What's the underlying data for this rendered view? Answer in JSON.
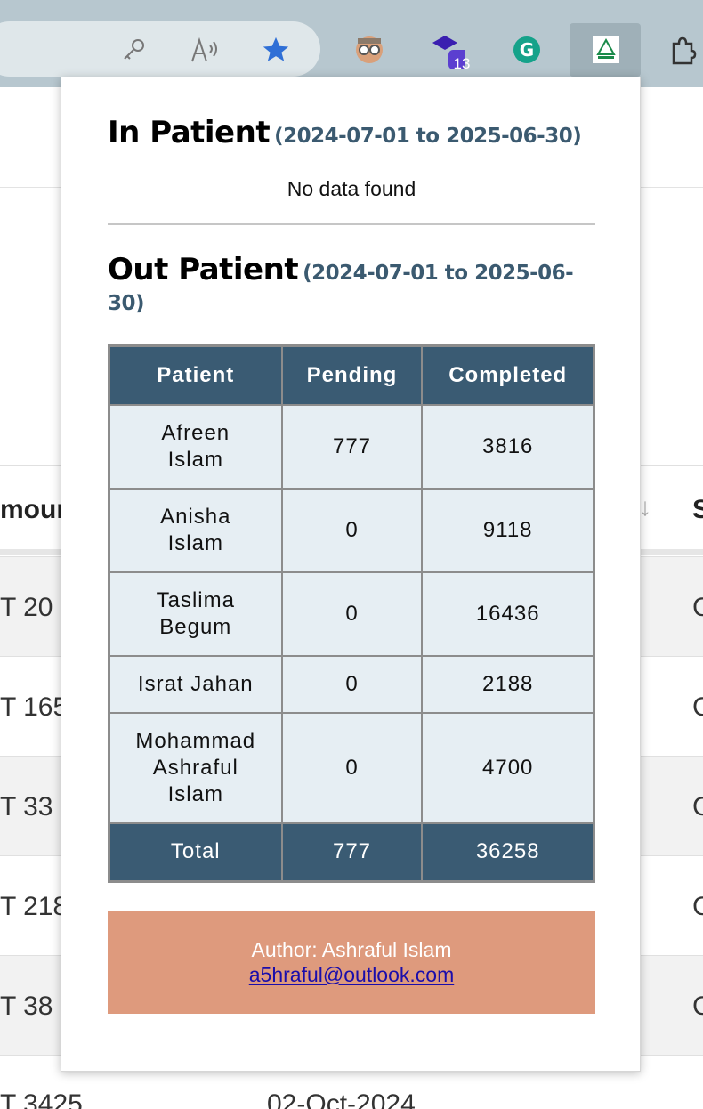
{
  "popup": {
    "in_patient": {
      "title": "In Patient",
      "range": "(2024-07-01 to 2025-06-30)",
      "empty": "No data found"
    },
    "out_patient": {
      "title": "Out Patient",
      "range": "(2024-07-01 to 2025-06-30)",
      "table": {
        "headers": [
          "Patient",
          "Pending",
          "Completed"
        ],
        "rows": [
          {
            "patient": "Afreen Islam",
            "pending": "777",
            "completed": "3816"
          },
          {
            "patient": "Anisha Islam",
            "pending": "0",
            "completed": "9118"
          },
          {
            "patient": "Taslima Begum",
            "pending": "0",
            "completed": "16436"
          },
          {
            "patient": "Israt Jahan",
            "pending": "0",
            "completed": "2188"
          },
          {
            "patient": "Mohammad Ashraful Islam",
            "pending": "0",
            "completed": "4700"
          }
        ],
        "total": {
          "label": "Total",
          "pending": "777",
          "completed": "36258"
        }
      }
    },
    "author": {
      "label": "Author: Ashraful Islam",
      "email": "a5hraful@outlook.com"
    }
  },
  "toolbar": {
    "badge_count": "13"
  },
  "background": {
    "header_partial": "moun",
    "header_right": "S",
    "rows": [
      "T 20",
      "T 165",
      "T 33",
      "T 218",
      "T 38",
      "T 3425"
    ],
    "last_row_date": "02-Oct-2024"
  },
  "colors": {
    "table_header": "#3a5b73",
    "table_cell": "#e6eef3",
    "author_bg": "#de9a7d",
    "range_text": "#3b5a70"
  }
}
